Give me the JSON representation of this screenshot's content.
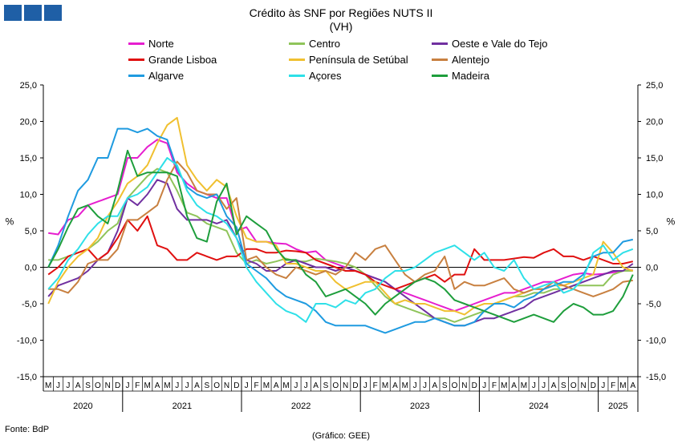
{
  "title": "Crédito às SNF por Regiões NUTS II",
  "subtitle": "(VH)",
  "source": "Fonte: BdP",
  "credit": "(Gráfico: GEE)",
  "chart_data": {
    "type": "line",
    "ylabel_left": "%",
    "ylabel_right": "%",
    "ylim": [
      -15,
      25
    ],
    "yticks": [
      25,
      20,
      15,
      10,
      5,
      0,
      -5,
      -10,
      -15
    ],
    "ytick_labels": [
      "25,0",
      "20,0",
      "15,0",
      "10,0",
      "5,0",
      "0,0",
      "-5,0",
      "-10,0",
      "-15,0"
    ],
    "months": [
      "M",
      "J",
      "J",
      "A",
      "S",
      "O",
      "N",
      "D",
      "J",
      "F",
      "M",
      "A",
      "M",
      "J",
      "J",
      "A",
      "S",
      "O",
      "N",
      "D",
      "J",
      "F",
      "M",
      "A",
      "M",
      "J",
      "J",
      "A",
      "S",
      "O",
      "N",
      "D",
      "J",
      "F",
      "M",
      "A",
      "M",
      "J",
      "J",
      "A",
      "S",
      "O",
      "N",
      "D",
      "J",
      "F",
      "M",
      "A",
      "M",
      "J",
      "J",
      "A",
      "S",
      "O",
      "N",
      "D",
      "J",
      "F",
      "M",
      "A"
    ],
    "years": [
      {
        "label": "2020",
        "start": 0,
        "end": 7
      },
      {
        "label": "2021",
        "start": 8,
        "end": 19
      },
      {
        "label": "2022",
        "start": 20,
        "end": 31
      },
      {
        "label": "2023",
        "start": 32,
        "end": 43
      },
      {
        "label": "2024",
        "start": 44,
        "end": 55
      },
      {
        "label": "2025",
        "start": 56,
        "end": 59
      }
    ],
    "series": [
      {
        "name": "Norte",
        "color": "#e61ecf",
        "values": [
          4.7,
          4.5,
          6.5,
          7,
          8.5,
          9,
          9.5,
          10,
          15,
          15,
          16.5,
          17.5,
          17,
          13,
          11.5,
          10.5,
          10,
          9.5,
          9.5,
          5,
          5.5,
          3.5,
          3.5,
          3.3,
          3.2,
          2.5,
          2,
          2.2,
          1,
          0.5,
          0,
          -0.5,
          -1,
          -1.5,
          -2,
          -3,
          -3.5,
          -4,
          -4.5,
          -5,
          -5.5,
          -6,
          -5.5,
          -5,
          -4.5,
          -4,
          -3.5,
          -3.5,
          -3,
          -2.5,
          -2,
          -2,
          -1.5,
          -1,
          -0.8,
          -1,
          -0.9,
          -0.7,
          -0.5,
          -0.4
        ]
      },
      {
        "name": "Centro",
        "color": "#8fc45a",
        "values": [
          1,
          1,
          1.5,
          2,
          2.5,
          3.5,
          5,
          6,
          9.5,
          11,
          12.5,
          13.5,
          13,
          10.5,
          7.5,
          7,
          6,
          5.5,
          5,
          2,
          0.5,
          1,
          0.5,
          0.8,
          1.2,
          0.8,
          0.8,
          1.2,
          1,
          0.8,
          0.5,
          0,
          -1,
          -2.5,
          -4,
          -5,
          -5.5,
          -6,
          -6.5,
          -7,
          -7,
          -7.5,
          -7,
          -6.5,
          -6,
          -5,
          -4.5,
          -4,
          -4,
          -3.5,
          -3.5,
          -3,
          -3,
          -2.5,
          -2.5,
          -2.5,
          -2.5,
          -1,
          -0.5,
          -0.5
        ]
      },
      {
        "name": "Oeste e Vale do Tejo",
        "color": "#7030a0",
        "values": [
          -4,
          -2.5,
          -2,
          -1.5,
          -0.5,
          1,
          2,
          5,
          9.5,
          8.5,
          10,
          12,
          11.5,
          8,
          6.5,
          6.5,
          6.5,
          6,
          6.5,
          4,
          1,
          0.5,
          -0.5,
          -0.5,
          0.5,
          1,
          0.5,
          0,
          0,
          -0.5,
          0,
          -0.5,
          -1,
          -1.5,
          -2,
          -3,
          -4,
          -5,
          -6,
          -7,
          -7.5,
          -8,
          -8,
          -7.5,
          -7,
          -7,
          -6.5,
          -6,
          -5.5,
          -4.5,
          -4,
          -3.5,
          -3,
          -2.5,
          -2,
          -1.5,
          -1,
          -0.5,
          -0.5,
          0.5
        ]
      },
      {
        "name": "Grande Lisboa",
        "color": "#e01010",
        "values": [
          -1,
          0,
          1.5,
          2,
          2.5,
          1,
          2,
          4,
          6.5,
          5,
          7,
          3,
          2.5,
          1,
          1,
          2,
          1.5,
          1,
          1.5,
          1.5,
          2.5,
          2.5,
          2,
          2,
          2.3,
          2.2,
          2,
          1,
          0.5,
          0,
          -0.5,
          -0.5,
          -1,
          -2,
          -2.5,
          -3,
          -2.5,
          -2,
          -1.5,
          -1,
          -2,
          -1,
          -1,
          2.5,
          1,
          1,
          1,
          1.2,
          1.4,
          1.3,
          2,
          2.5,
          1.5,
          1.5,
          1,
          1.5,
          1,
          0.5,
          0.5,
          0.8
        ]
      },
      {
        "name": "Península de Setúbal",
        "color": "#f0c030",
        "values": [
          -5,
          -2,
          0,
          1.5,
          2.5,
          4,
          7,
          9,
          11.5,
          12.5,
          14,
          17,
          19.5,
          20.5,
          14,
          12,
          10.5,
          12,
          11,
          7,
          4,
          3.5,
          3.5,
          3,
          0.5,
          0.5,
          0,
          -0.5,
          -0.5,
          -2,
          -3,
          -2.5,
          -2,
          -2,
          -3.5,
          -5,
          -4.5,
          -5,
          -5,
          -5.5,
          -6,
          -6,
          -6.5,
          -5.5,
          -5,
          -5,
          -4.5,
          -4,
          -3.5,
          -3,
          -3,
          -2.5,
          -2.5,
          -2,
          -1.5,
          -1,
          3.5,
          2,
          0,
          -0.5
        ]
      },
      {
        "name": "Alentejo",
        "color": "#c88040",
        "values": [
          -3,
          -3,
          -3.5,
          -2,
          0.5,
          1,
          1,
          2.5,
          6.5,
          6.5,
          7.5,
          8.5,
          12,
          14.5,
          13,
          10.5,
          10,
          10,
          8,
          9.5,
          1,
          1.5,
          0,
          -1,
          -1.5,
          0,
          -0.5,
          -1,
          -0.5,
          -1,
          0,
          2,
          1,
          2.5,
          3,
          1,
          -1,
          -2,
          -1,
          -0.5,
          1.5,
          -3,
          -2,
          -2.5,
          -2.5,
          -2,
          -1.5,
          -3,
          -3.5,
          -3,
          -3,
          -2,
          -2.5,
          -3,
          -3.5,
          -4,
          -3.5,
          -3,
          -2,
          -1.8
        ]
      },
      {
        "name": "Algarve",
        "color": "#1f9be0",
        "values": [
          0,
          3,
          7,
          10.5,
          12,
          15,
          15,
          19,
          19,
          18.5,
          19,
          18,
          17.5,
          13.5,
          11,
          10,
          9.5,
          10,
          7,
          5.5,
          0.5,
          -0.5,
          -1.5,
          -3,
          -4,
          -4.5,
          -5,
          -6,
          -7.5,
          -8,
          -8,
          -8,
          -8,
          -8.5,
          -9,
          -8.5,
          -8,
          -7.5,
          -7.5,
          -7,
          -7.5,
          -8,
          -8,
          -7.5,
          -6,
          -5,
          -5,
          -5.5,
          -4.5,
          -4,
          -3,
          -2.5,
          -2,
          -2,
          -1,
          1.5,
          2,
          2,
          3.5,
          3.8
        ]
      },
      {
        "name": "Açores",
        "color": "#2ee0e8",
        "values": [
          -3,
          -1.5,
          1,
          2.5,
          4.5,
          6,
          7,
          7,
          9.5,
          10,
          11,
          13,
          15,
          14,
          10.5,
          8.5,
          7.5,
          7,
          6,
          4,
          0,
          -2,
          -3.5,
          -5,
          -6,
          -6.5,
          -7.5,
          -5,
          -5,
          -5.5,
          -4.5,
          -5,
          -3.5,
          -3,
          -1.5,
          -0.5,
          -0.5,
          0,
          1,
          2,
          2.5,
          3,
          2,
          1,
          2,
          0,
          -0.5,
          1,
          -1.5,
          -3,
          -2.5,
          -2,
          -3.5,
          -3,
          -1.5,
          2,
          3,
          1,
          2,
          2.5
        ]
      },
      {
        "name": "Madeira",
        "color": "#1e9e3c",
        "values": [
          0,
          2.5,
          5.5,
          8,
          8.5,
          7,
          6,
          10.5,
          16,
          12.5,
          13,
          13,
          13,
          12.5,
          7,
          4,
          3.5,
          9,
          11.5,
          4.5,
          7,
          6,
          5,
          2.5,
          1,
          1,
          -1,
          -2,
          -4,
          -3.5,
          -3,
          -4,
          -5,
          -6.5,
          -5,
          -4,
          -3,
          -2,
          -1.5,
          -2,
          -3,
          -4.5,
          -5,
          -5.5,
          -6,
          -6.5,
          -7,
          -7.5,
          -7,
          -6.5,
          -7,
          -7.5,
          -6,
          -5,
          -5.5,
          -6.5,
          -6.5,
          -6,
          -4,
          -1
        ]
      }
    ]
  }
}
